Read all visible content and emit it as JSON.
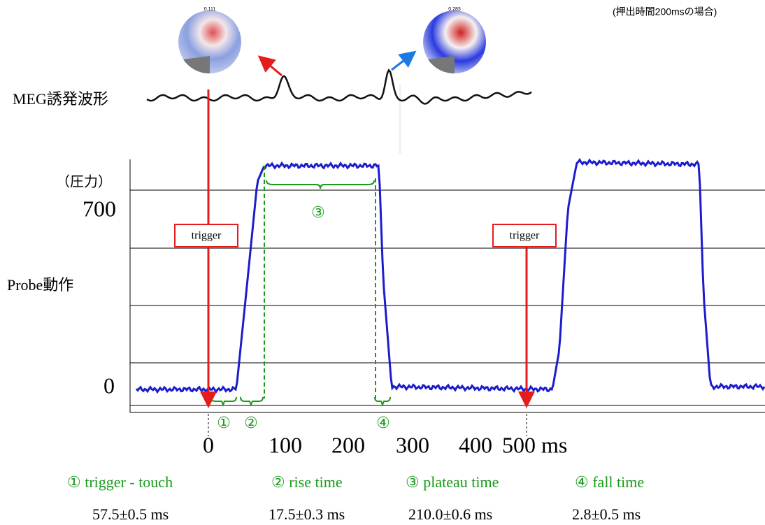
{
  "note": "(押出時間200msの場合)",
  "head_maps": [
    "0.111",
    "0.283"
  ],
  "meg_label": "MEG誘発波形",
  "pressure_unit": "（圧力）",
  "y_labels": [
    "700",
    "0"
  ],
  "probe_label": "Probe動作",
  "trigger_labels": [
    "trigger",
    "trigger"
  ],
  "markers": [
    "①",
    "②",
    "③",
    "④"
  ],
  "x_labels": [
    "0",
    "100",
    "200",
    "300",
    "400",
    "500 ms"
  ],
  "legend": [
    "① trigger - touch",
    "② rise time",
    "③ plateau time",
    "④ fall time"
  ],
  "results": [
    "57.5±0.5 ms",
    "17.5±0.3 ms",
    "210.0±0.6 ms",
    "2.8±0.5 ms"
  ]
}
